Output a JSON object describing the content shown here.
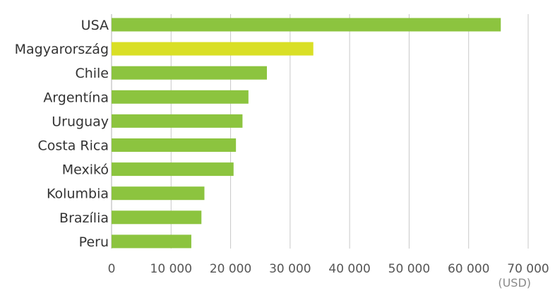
{
  "chart_data": {
    "type": "bar",
    "orientation": "horizontal",
    "categories": [
      "USA",
      "Magyarország",
      "Chile",
      "Argentína",
      "Uruguay",
      "Costa Rica",
      "Mexikó",
      "Kolumbia",
      "Brazília",
      "Peru"
    ],
    "values": [
      65400,
      33900,
      26100,
      23000,
      22000,
      20900,
      20500,
      15600,
      15100,
      13400
    ],
    "bar_colors": [
      "#8cc43f",
      "#d9df26",
      "#8cc43f",
      "#8cc43f",
      "#8cc43f",
      "#8cc43f",
      "#8cc43f",
      "#8cc43f",
      "#8cc43f",
      "#8cc43f"
    ],
    "highlight_category": "Magyarország",
    "tick_values": [
      0,
      10000,
      20000,
      30000,
      40000,
      50000,
      60000,
      70000
    ],
    "tick_labels": [
      "0",
      "10 000",
      "20 000",
      "30 000",
      "40 000",
      "50 000",
      "60 000",
      "70 000"
    ],
    "xlim": [
      0,
      70000
    ],
    "unit_label": "(USD)",
    "grid": true,
    "legend": false,
    "colors": {
      "bar": "#8cc43f",
      "highlight": "#d9df26",
      "grid": "#c8c8c8"
    }
  }
}
